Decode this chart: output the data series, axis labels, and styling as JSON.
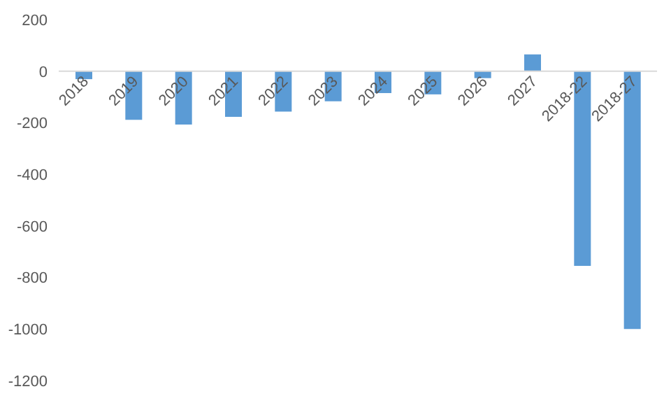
{
  "chart_data": {
    "type": "bar",
    "categories": [
      "2018",
      "2019",
      "2020",
      "2021",
      "2022",
      "2023",
      "2024",
      "2025",
      "2026",
      "2027",
      "2018-22",
      "2018-27"
    ],
    "values": [
      -31,
      -189,
      -207,
      -177,
      -157,
      -117,
      -85,
      -90,
      -27,
      65,
      -755,
      -1000
    ],
    "color": "#5b9bd5",
    "ylim": [
      -1200,
      200
    ],
    "yticks": [
      -1200,
      -1000,
      -800,
      -600,
      -400,
      -200,
      0,
      200
    ]
  }
}
